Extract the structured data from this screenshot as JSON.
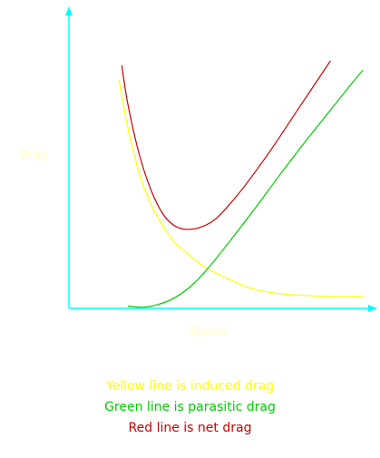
{
  "chart_data": {
    "type": "line",
    "xlabel": "Speed",
    "ylabel": "Drag",
    "grid": false,
    "x_range": [
      0,
      100
    ],
    "y_range": [
      0,
      100
    ],
    "series": [
      {
        "name": "induced drag",
        "color": "#ffff00",
        "x": [
          17,
          20,
          24,
          28,
          32,
          36,
          40,
          45,
          50,
          56,
          62,
          70,
          80,
          90,
          100
        ],
        "y": [
          97,
          77,
          57,
          44,
          35,
          28,
          23.5,
          18.5,
          15,
          11.5,
          8.5,
          6.5,
          5.5,
          5,
          5
        ]
      },
      {
        "name": "parasitic drag",
        "color": "#00cc00",
        "x": [
          20,
          25,
          30,
          36,
          42,
          48,
          56,
          64,
          72,
          80,
          88,
          96,
          100
        ],
        "y": [
          1,
          0.5,
          1.5,
          4.5,
          10,
          18,
          30.5,
          43.5,
          57,
          70,
          82.5,
          95,
          101
        ]
      },
      {
        "name": "net drag",
        "color": "#cc0000",
        "x": [
          18,
          20,
          24,
          28,
          32,
          36,
          40,
          45,
          50,
          56,
          62,
          70,
          78,
          85,
          89
        ],
        "y": [
          103,
          87,
          65,
          50,
          40,
          35,
          33.5,
          34.5,
          38,
          46,
          55.5,
          69.5,
          84.5,
          97.5,
          105
        ]
      }
    ],
    "axis_color": "#00ffff"
  },
  "captions": [
    {
      "text": "Yellow line is induced drag",
      "color": "#ffff00"
    },
    {
      "text": "Green line is parasitic drag",
      "color": "#00cc00"
    },
    {
      "text": "Red line is net drag",
      "color": "#cc0000"
    }
  ]
}
